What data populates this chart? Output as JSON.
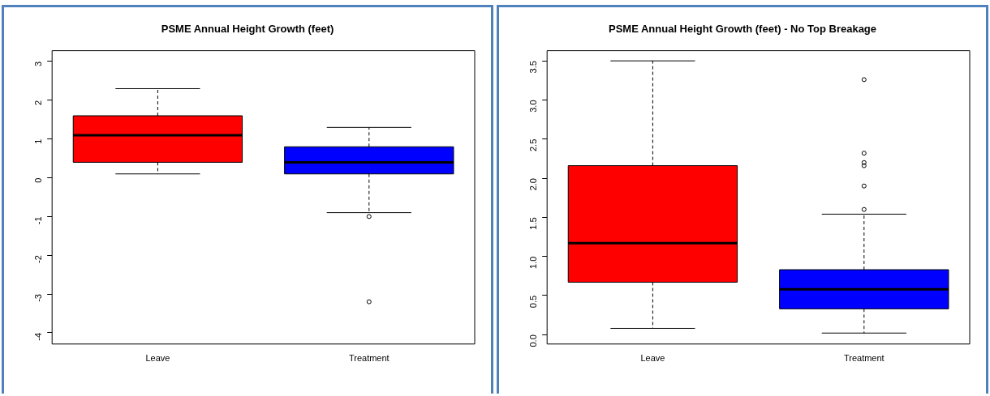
{
  "chart_data": [
    {
      "type": "box",
      "title": "PSME Annual Height Growth (feet)",
      "categories": [
        "Leave",
        "Treatment"
      ],
      "colors": [
        "#ff0000",
        "#0000ff"
      ],
      "boxes": [
        {
          "low": 0.1,
          "q1": 0.4,
          "median": 1.1,
          "q3": 1.6,
          "high": 2.3
        },
        {
          "low": -0.9,
          "q1": 0.1,
          "median": 0.4,
          "q3": 0.8,
          "high": 1.3,
          "outliers": [
            -1,
            -3.2
          ]
        }
      ],
      "ylim": [
        -4.29,
        3.28
      ],
      "yticks": [
        -4,
        -3,
        -2,
        -1,
        0,
        1,
        2,
        3
      ],
      "grid": false,
      "legend": false
    },
    {
      "type": "box",
      "title": "PSME Annual Height Growth (feet) - No Top Breakage",
      "categories": [
        "Leave",
        "Treatment"
      ],
      "colors": [
        "#ff0000",
        "#0000ff"
      ],
      "boxes": [
        {
          "low": 0.08,
          "q1": 0.67,
          "median": 1.17,
          "q3": 2.16,
          "high": 3.5
        },
        {
          "low": 0.02,
          "q1": 0.33,
          "median": 0.58,
          "q3": 0.83,
          "high": 1.54,
          "outliers": [
            1.6,
            1.9,
            2.16,
            2.2,
            2.32,
            3.26
          ]
        }
      ],
      "ylim": [
        -0.12,
        3.63
      ],
      "yticks": [
        {
          "value": 0,
          "label": "0.0"
        },
        {
          "value": 0.5,
          "label": "0.5"
        },
        {
          "value": 1,
          "label": "1.0"
        },
        {
          "value": 1.5,
          "label": "1.5"
        },
        {
          "value": 2,
          "label": "2.0"
        },
        {
          "value": 2.5,
          "label": "2.5"
        },
        {
          "value": 3,
          "label": "3.0"
        },
        {
          "value": 3.5,
          "label": "3.5"
        }
      ],
      "grid": false,
      "legend": false
    }
  ]
}
